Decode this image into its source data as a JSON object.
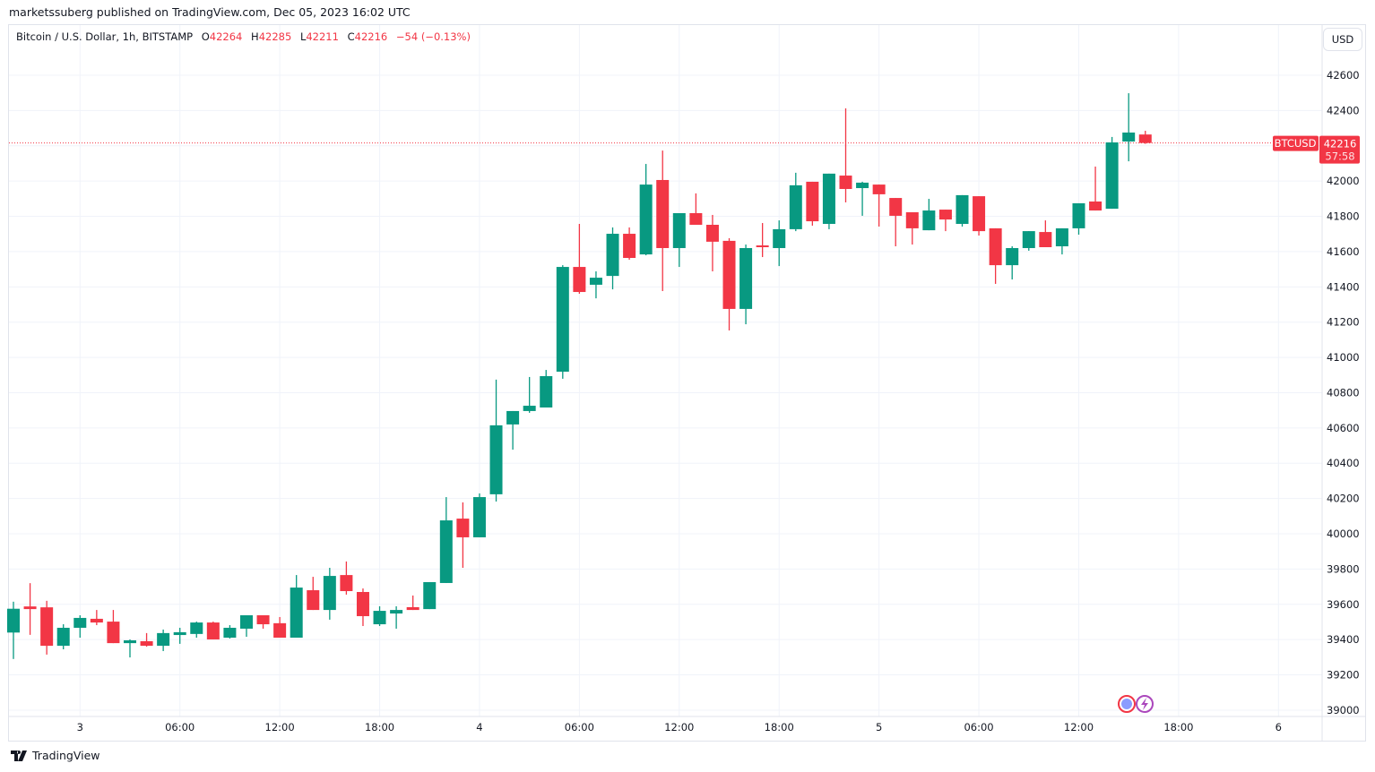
{
  "published": "marketssuberg published on TradingView.com, Dec 05, 2023 16:02 UTC",
  "legend": {
    "symbol": "Bitcoin / U.S. Dollar, 1h, BITSTAMP",
    "o_label": "O",
    "o": "42264",
    "h_label": "H",
    "h": "42285",
    "l_label": "L",
    "l": "42211",
    "c_label": "C",
    "c": "42216",
    "change": "−54 (−0.13%)"
  },
  "currency_button": "USD",
  "price_label": {
    "ticker": "BTCUSD",
    "price": "42216",
    "countdown": "57:58"
  },
  "footer": {
    "brand": "TradingView"
  },
  "colors": {
    "up": "#089981",
    "down": "#f23645",
    "grid": "#f0f3fa"
  },
  "chart_data": {
    "type": "candlestick",
    "interval": "1h",
    "first_bar": "Dec 2 20:00",
    "ylim": [
      39000,
      42650
    ],
    "yticks": [
      39000,
      39200,
      39400,
      39600,
      39800,
      40000,
      40200,
      40400,
      40600,
      40800,
      41000,
      41200,
      41400,
      41600,
      41800,
      42000,
      42200,
      42400,
      42600
    ],
    "xticks": [
      {
        "label": "3",
        "hour": 4
      },
      {
        "label": "06:00",
        "hour": 10
      },
      {
        "label": "12:00",
        "hour": 16
      },
      {
        "label": "18:00",
        "hour": 22
      },
      {
        "label": "4",
        "hour": 28
      },
      {
        "label": "06:00",
        "hour": 34
      },
      {
        "label": "12:00",
        "hour": 40
      },
      {
        "label": "18:00",
        "hour": 46
      },
      {
        "label": "5",
        "hour": 52
      },
      {
        "label": "06:00",
        "hour": 58
      },
      {
        "label": "12:00",
        "hour": 64
      },
      {
        "label": "18:00",
        "hour": 70
      },
      {
        "label": "6",
        "hour": 76
      }
    ],
    "grid": true,
    "last_price": 42216,
    "ohlc": [
      [
        39440,
        39615,
        39290,
        39575
      ],
      [
        39588,
        39720,
        39427,
        39573
      ],
      [
        39583,
        39620,
        39315,
        39365
      ],
      [
        39365,
        39487,
        39345,
        39467
      ],
      [
        39467,
        39538,
        39411,
        39523
      ],
      [
        39518,
        39568,
        39482,
        39497
      ],
      [
        39502,
        39568,
        39380,
        39380
      ],
      [
        39380,
        39401,
        39299,
        39396
      ],
      [
        39391,
        39437,
        39360,
        39365
      ],
      [
        39365,
        39457,
        39335,
        39437
      ],
      [
        39426,
        39467,
        39376,
        39442
      ],
      [
        39432,
        39502,
        39411,
        39497
      ],
      [
        39497,
        39502,
        39401,
        39401
      ],
      [
        39411,
        39482,
        39406,
        39467
      ],
      [
        39462,
        39538,
        39416,
        39538
      ],
      [
        39538,
        39538,
        39462,
        39487
      ],
      [
        39493,
        39528,
        39411,
        39411
      ],
      [
        39411,
        39766,
        39411,
        39695
      ],
      [
        39680,
        39756,
        39568,
        39568
      ],
      [
        39568,
        39807,
        39513,
        39761
      ],
      [
        39766,
        39843,
        39655,
        39675
      ],
      [
        39670,
        39690,
        39477,
        39533
      ],
      [
        39487,
        39589,
        39477,
        39563
      ],
      [
        39548,
        39589,
        39462,
        39568
      ],
      [
        39584,
        39650,
        39568,
        39568
      ],
      [
        39573,
        39726,
        39573,
        39726
      ],
      [
        39721,
        40208,
        39721,
        40076
      ],
      [
        40086,
        40178,
        39807,
        39980
      ],
      [
        39980,
        40229,
        39980,
        40208
      ],
      [
        40224,
        40874,
        40183,
        40615
      ],
      [
        40620,
        40696,
        40477,
        40696
      ],
      [
        40696,
        40889,
        40686,
        40726
      ],
      [
        40716,
        40929,
        40716,
        40894
      ],
      [
        40919,
        41523,
        40879,
        41513
      ],
      [
        41513,
        41757,
        41361,
        41371
      ],
      [
        41412,
        41488,
        41335,
        41452
      ],
      [
        41462,
        41737,
        41386,
        41701
      ],
      [
        41701,
        41737,
        41554,
        41564
      ],
      [
        41584,
        42097,
        41579,
        41980
      ],
      [
        42006,
        42173,
        41376,
        41620
      ],
      [
        41620,
        41818,
        41513,
        41818
      ],
      [
        41818,
        41930,
        41752,
        41752
      ],
      [
        41752,
        41808,
        41488,
        41656
      ],
      [
        41661,
        41676,
        41153,
        41275
      ],
      [
        41275,
        41640,
        41188,
        41620
      ],
      [
        41635,
        41762,
        41569,
        41625
      ],
      [
        41620,
        41777,
        41518,
        41727
      ],
      [
        41727,
        42047,
        41716,
        41976
      ],
      [
        41996,
        41996,
        41747,
        41772
      ],
      [
        41757,
        42042,
        41727,
        42042
      ],
      [
        42031,
        42412,
        41879,
        41955
      ],
      [
        41960,
        41996,
        41803,
        41991
      ],
      [
        41980,
        41980,
        41742,
        41925
      ],
      [
        41904,
        41904,
        41630,
        41803
      ],
      [
        41823,
        41823,
        41640,
        41732
      ],
      [
        41721,
        41899,
        41721,
        41833
      ],
      [
        41838,
        41838,
        41716,
        41782
      ],
      [
        41757,
        41920,
        41742,
        41920
      ],
      [
        41914,
        41914,
        41691,
        41716
      ],
      [
        41732,
        41732,
        41417,
        41523
      ],
      [
        41523,
        41630,
        41442,
        41620
      ],
      [
        41620,
        41716,
        41605,
        41716
      ],
      [
        41711,
        41777,
        41625,
        41625
      ],
      [
        41630,
        41732,
        41584,
        41732
      ],
      [
        41732,
        41874,
        41696,
        41874
      ],
      [
        41884,
        42082,
        41833,
        41833
      ],
      [
        41843,
        42250,
        41843,
        42219
      ],
      [
        42224,
        42498,
        42112,
        42275
      ],
      [
        42264,
        42285,
        42211,
        42216
      ]
    ]
  }
}
